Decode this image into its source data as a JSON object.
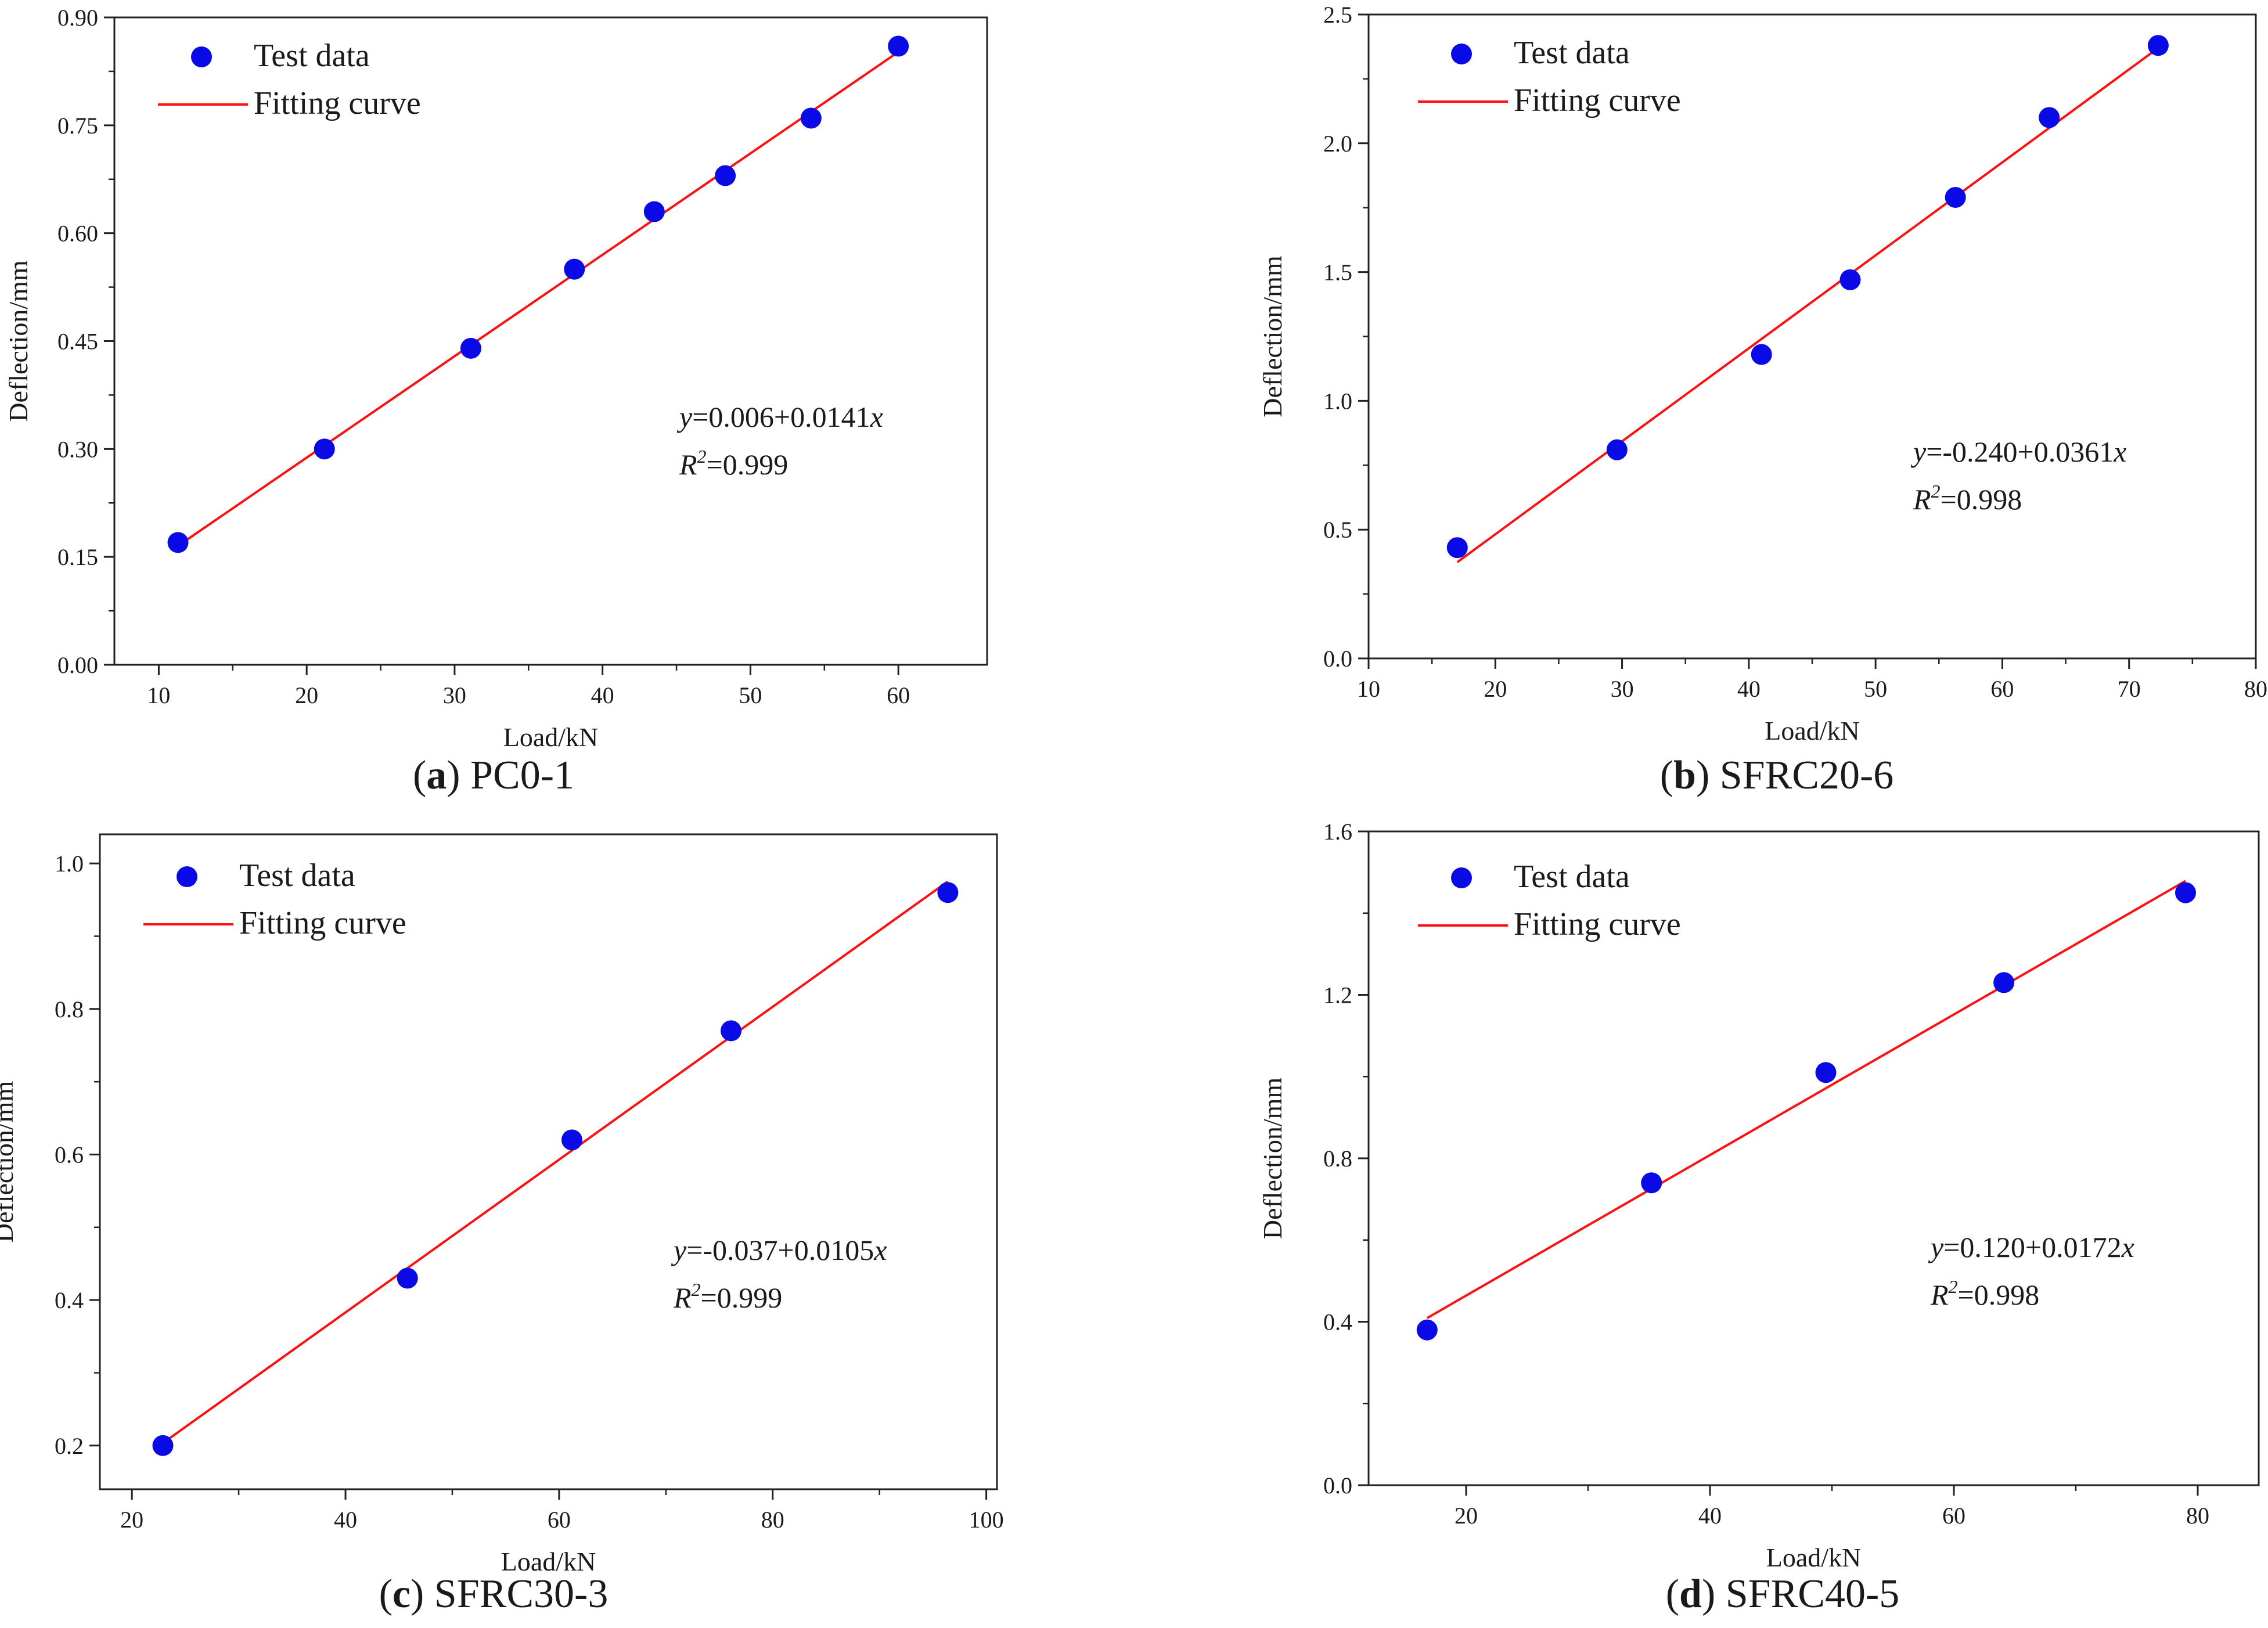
{
  "colors": {
    "points": "#0a0ae6",
    "fit_line": "#ff1111",
    "axis": "#222222",
    "text": "#1a1a1a"
  },
  "legend": {
    "test_data": "Test data",
    "fitting_curve": "Fitting curve"
  },
  "chart_data": [
    {
      "id": "a",
      "type": "scatter",
      "panel_letter": "a",
      "title": "PC0-1",
      "xlabel": "Load/kN",
      "ylabel": "Deflection/mm",
      "xlim": [
        7,
        66
      ],
      "ylim": [
        0,
        0.9
      ],
      "xticks": [
        10,
        20,
        30,
        40,
        50,
        60
      ],
      "yticks": [
        0.0,
        0.15,
        0.3,
        0.45,
        0.6,
        0.75,
        0.9
      ],
      "xtick_labels": [
        "10",
        "20",
        "30",
        "40",
        "50",
        "60"
      ],
      "ytick_labels": [
        "0.00",
        "0.15",
        "0.30",
        "0.45",
        "0.60",
        "0.75",
        "0.90"
      ],
      "x": [
        11.3,
        21.2,
        31.1,
        38.1,
        43.5,
        48.3,
        54.1,
        60.0
      ],
      "y": [
        0.17,
        0.3,
        0.44,
        0.55,
        0.63,
        0.68,
        0.76,
        0.86
      ],
      "fit": {
        "intercept": 0.006,
        "slope": 0.0141,
        "x_range": [
          11.3,
          60.0
        ]
      },
      "equation": {
        "y_prefix": "y",
        "eq_rest": "=0.006+0.0141",
        "x_suffix": "x",
        "r_letter": "R",
        "r_exp": "2",
        "r_value": "=0.999"
      },
      "legend_position": "top-left"
    },
    {
      "id": "b",
      "type": "scatter",
      "panel_letter": "b",
      "title": "SFRC20-6",
      "xlabel": "Load/kN",
      "ylabel": "Deflection/mm",
      "xlim": [
        10,
        80
      ],
      "ylim": [
        0,
        2.5
      ],
      "xticks": [
        10,
        20,
        30,
        40,
        50,
        60,
        70,
        80
      ],
      "yticks": [
        0.0,
        0.5,
        1.0,
        1.5,
        2.0,
        2.5
      ],
      "xtick_labels": [
        "10",
        "20",
        "30",
        "40",
        "50",
        "60",
        "70",
        "80"
      ],
      "ytick_labels": [
        "0.0",
        "0.5",
        "1.0",
        "1.5",
        "2.0",
        "2.5"
      ],
      "x": [
        17.0,
        29.6,
        41.0,
        48.0,
        56.3,
        63.7,
        72.3
      ],
      "y": [
        0.43,
        0.81,
        1.18,
        1.47,
        1.79,
        2.1,
        2.38
      ],
      "fit": {
        "intercept": -0.24,
        "slope": 0.0361,
        "x_range": [
          17.0,
          72.3
        ]
      },
      "equation": {
        "y_prefix": "y",
        "eq_rest": "=-0.240+0.0361",
        "x_suffix": "x",
        "r_letter": "R",
        "r_exp": "2",
        "r_value": "=0.998"
      },
      "legend_position": "top-left"
    },
    {
      "id": "c",
      "type": "scatter",
      "panel_letter": "c",
      "title": "SFRC30-3",
      "xlabel": "Load/kN",
      "ylabel": "Deflection/mm",
      "xlim": [
        17,
        101
      ],
      "ylim": [
        0.14,
        1.04
      ],
      "xticks": [
        20,
        40,
        60,
        80,
        100
      ],
      "yticks": [
        0.2,
        0.4,
        0.6,
        0.8,
        1.0
      ],
      "xtick_labels": [
        "20",
        "40",
        "60",
        "80",
        "100"
      ],
      "ytick_labels": [
        "0.2",
        "0.4",
        "0.6",
        "0.8",
        "1.0"
      ],
      "x": [
        22.9,
        45.8,
        61.2,
        76.1,
        96.4
      ],
      "y": [
        0.2,
        0.43,
        0.62,
        0.77,
        0.96
      ],
      "fit": {
        "intercept": -0.037,
        "slope": 0.0105,
        "x_range": [
          22.9,
          96.4
        ]
      },
      "equation": {
        "y_prefix": "y",
        "eq_rest": "=-0.037+0.0105",
        "x_suffix": "x",
        "r_letter": "R",
        "r_exp": "2",
        "r_value": "=0.999"
      },
      "legend_position": "top-left"
    },
    {
      "id": "d",
      "type": "scatter",
      "panel_letter": "d",
      "title": "SFRC40-5",
      "xlabel": "Load/kN",
      "ylabel": "Deflection/mm",
      "xlim": [
        12,
        85
      ],
      "ylim": [
        0,
        1.6
      ],
      "xticks": [
        20,
        40,
        60,
        80
      ],
      "yticks": [
        0.0,
        0.4,
        0.8,
        1.2,
        1.6
      ],
      "xtick_labels": [
        "20",
        "40",
        "60",
        "80"
      ],
      "ytick_labels": [
        "0.0",
        "0.4",
        "0.8",
        "1.2",
        "1.6"
      ],
      "x": [
        16.8,
        35.2,
        49.5,
        64.1,
        79.0
      ],
      "y": [
        0.38,
        0.74,
        1.01,
        1.23,
        1.45
      ],
      "fit": {
        "intercept": 0.12,
        "slope": 0.0172,
        "x_range": [
          16.8,
          79.0
        ]
      },
      "equation": {
        "y_prefix": "y",
        "eq_rest": "=0.120+0.0172",
        "x_suffix": "x",
        "r_letter": "R",
        "r_exp": "2",
        "r_value": "=0.998"
      },
      "legend_position": "top-left"
    }
  ]
}
